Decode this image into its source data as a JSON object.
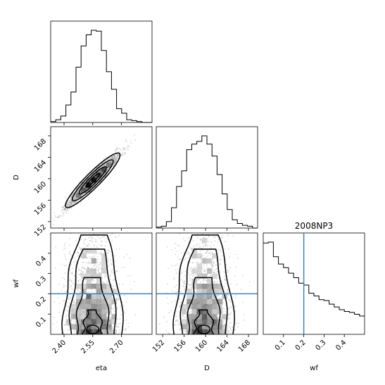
{
  "chart_data": {
    "type": "corner",
    "title": "2008NP3",
    "parameters": [
      "eta",
      "D",
      "wf"
    ],
    "truths": {
      "wf": 0.2
    },
    "colors": {
      "truth": "#4682b4",
      "hist": "#000000"
    },
    "ranges": {
      "eta": [
        2.33,
        2.86
      ],
      "D": [
        150.8,
        169.7
      ],
      "wf": [
        0.0,
        0.5
      ]
    },
    "ticks": {
      "eta": [
        "2.40",
        "2.55",
        "2.70"
      ],
      "D": [
        "152",
        "156",
        "160",
        "164",
        "168"
      ],
      "wf": [
        "0.1",
        "0.2",
        "0.3",
        "0.4"
      ]
    },
    "hist_eta": {
      "edges": [
        2.33,
        2.3565,
        2.383,
        2.4095,
        2.436,
        2.4625,
        2.489,
        2.5155,
        2.542,
        2.5685,
        2.595,
        2.6215,
        2.648,
        2.6745,
        2.701,
        2.7275,
        2.754,
        2.7805,
        2.807,
        2.8335,
        2.86
      ],
      "counts": [
        1,
        3,
        7,
        19,
        33,
        60,
        83,
        95,
        100,
        99,
        78,
        55,
        36,
        15,
        10,
        3,
        2,
        1,
        0,
        0
      ]
    },
    "hist_D": {
      "edges": [
        150.8,
        151.745,
        152.69,
        153.635,
        154.58,
        155.525,
        156.47,
        157.415,
        158.36,
        159.305,
        160.25,
        161.195,
        162.14,
        163.085,
        164.03,
        164.975,
        165.92,
        166.865,
        167.81,
        168.755,
        169.7
      ],
      "counts": [
        1,
        2,
        7,
        22,
        45,
        62,
        85,
        91,
        94,
        100,
        91,
        78,
        58,
        37,
        20,
        9,
        5,
        3,
        2,
        0
      ]
    },
    "hist_wf": {
      "edges": [
        0.0,
        0.025,
        0.05,
        0.075,
        0.1,
        0.125,
        0.15,
        0.175,
        0.2,
        0.225,
        0.25,
        0.275,
        0.3,
        0.325,
        0.35,
        0.375,
        0.4,
        0.425,
        0.45,
        0.475,
        0.5
      ],
      "counts": [
        100,
        101,
        85,
        77,
        73,
        67,
        62,
        56,
        54,
        45,
        42,
        38,
        37,
        33,
        30,
        27,
        25,
        24,
        22,
        20
      ]
    },
    "correlations": {
      "eta_D": 0.97,
      "eta_wf": 0.0,
      "D_wf": 0.0
    },
    "centers": {
      "eta": 2.55,
      "D": 159.7,
      "wf_mode": 0.04
    },
    "spreads": {
      "eta": 0.07,
      "D": 2.5
    }
  }
}
